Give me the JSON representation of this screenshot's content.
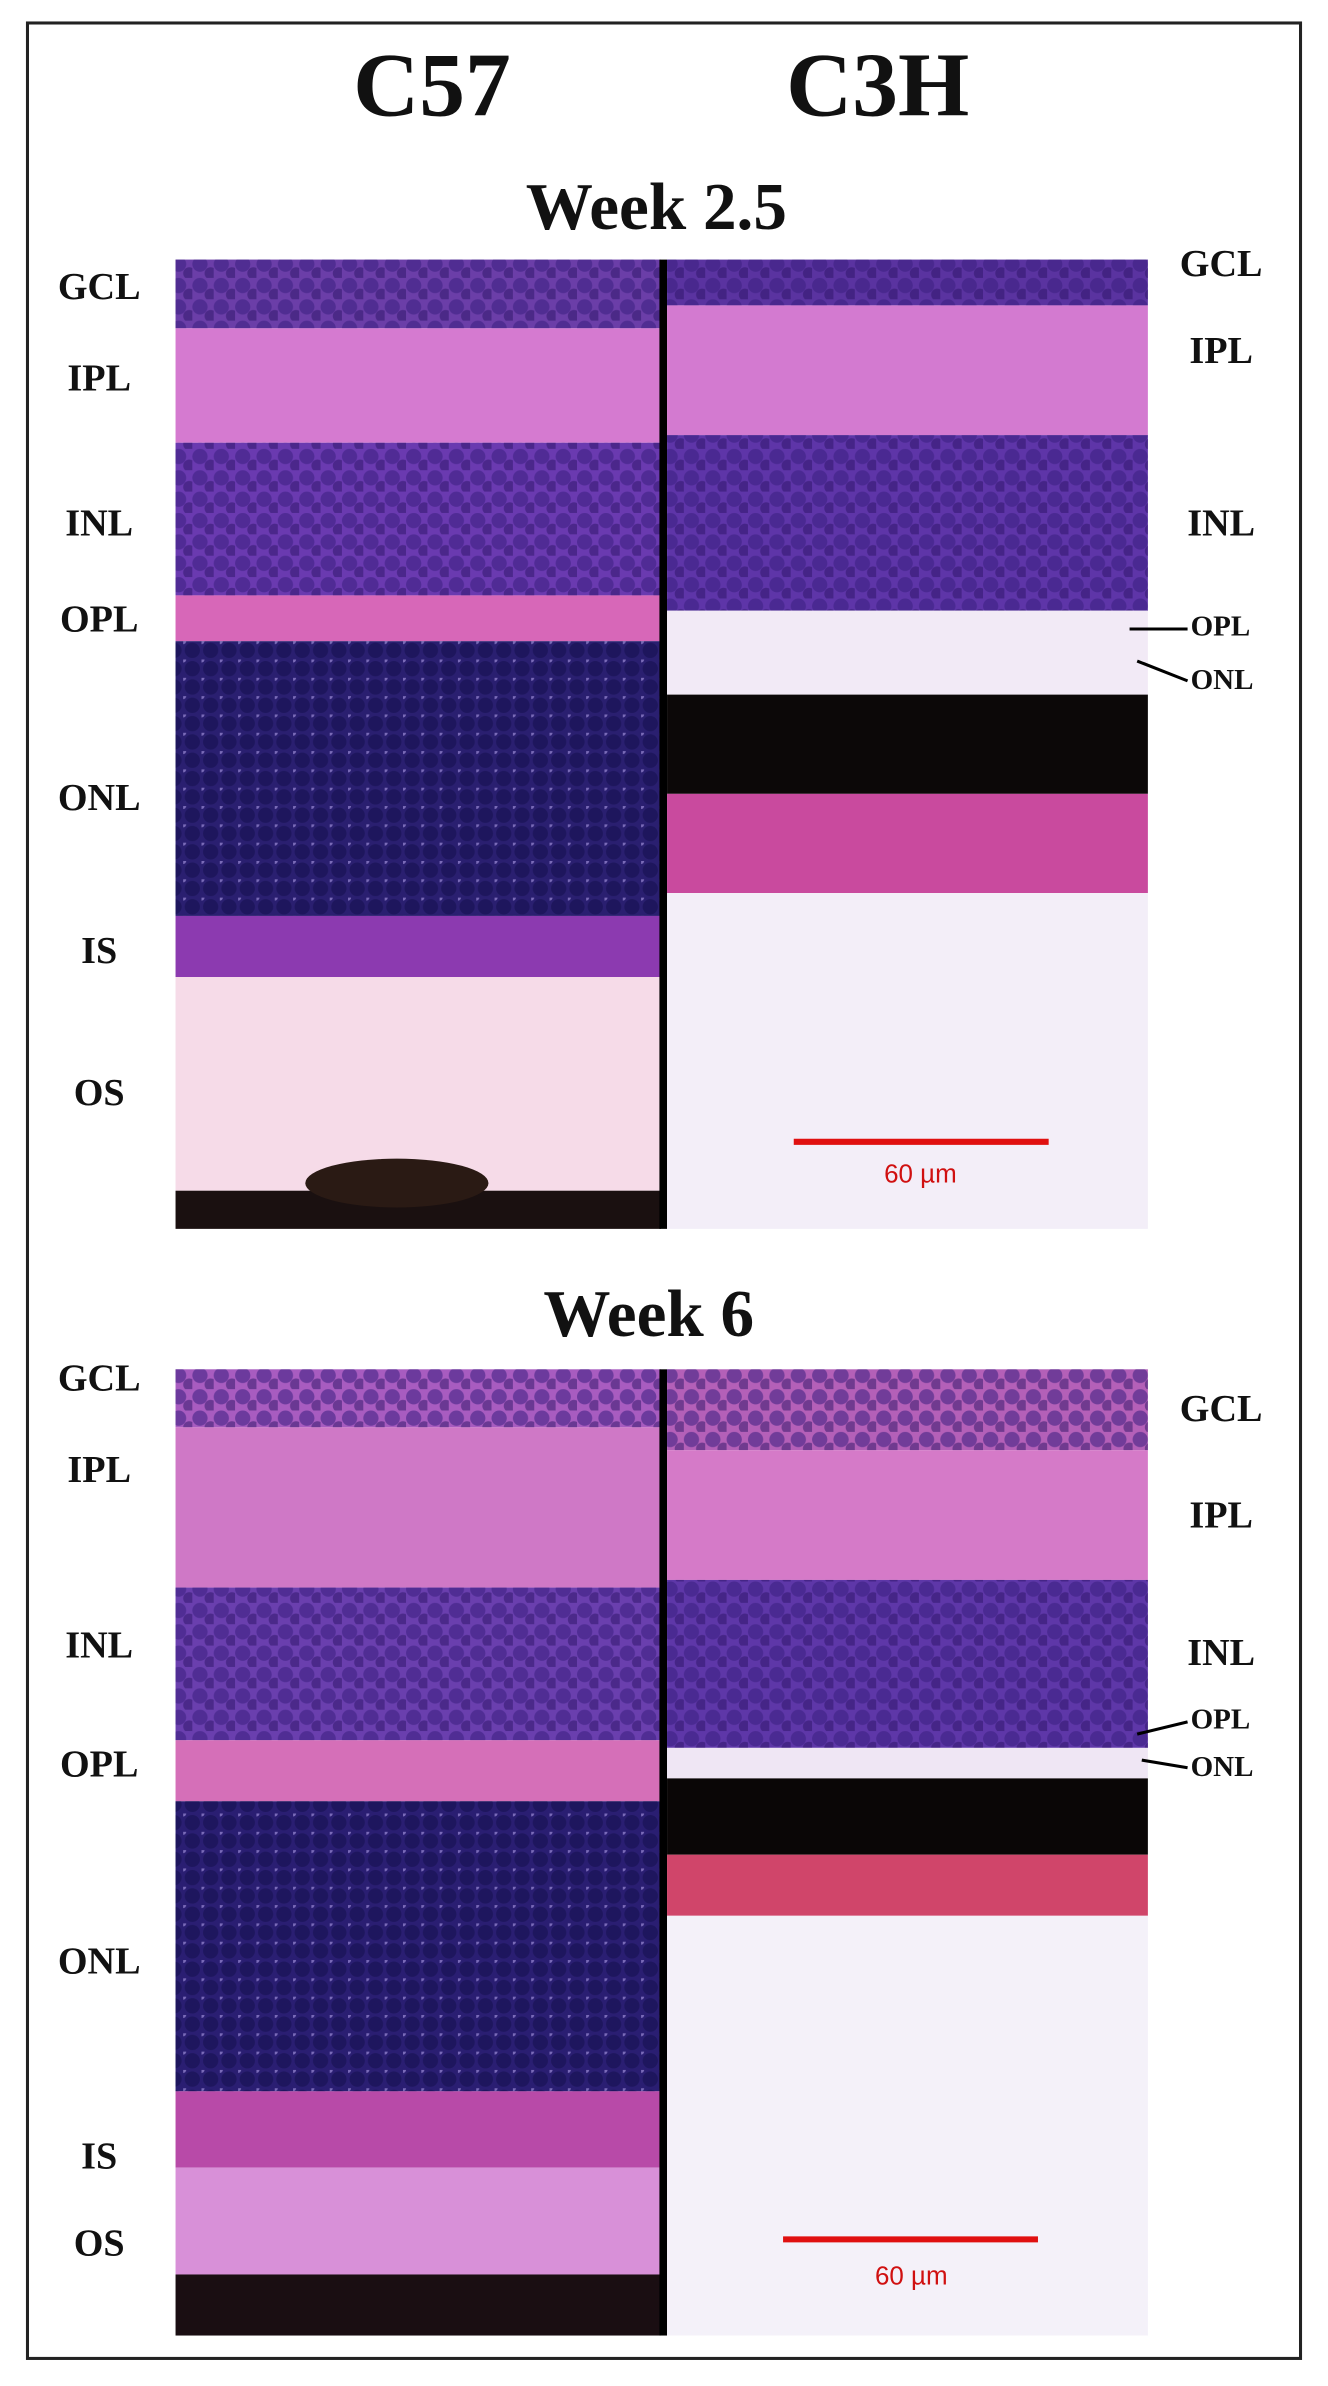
{
  "columns": [
    "C57",
    "C3H"
  ],
  "panels": [
    {
      "title": "Week 2.5",
      "left_labels": [
        "GCL",
        "IPL",
        "INL",
        "OPL",
        "ONL",
        "IS",
        "OS"
      ],
      "right_labels": [
        "GCL",
        "IPL",
        "INL",
        "OPL",
        "ONL"
      ],
      "scale_bar": "60 µm"
    },
    {
      "title": "Week 6",
      "left_labels": [
        "GCL",
        "IPL",
        "INL",
        "OPL",
        "ONL",
        "IS",
        "OS"
      ],
      "right_labels": [
        "GCL",
        "IPL",
        "INL",
        "OPL",
        "ONL"
      ],
      "scale_bar": "60 µm"
    }
  ]
}
